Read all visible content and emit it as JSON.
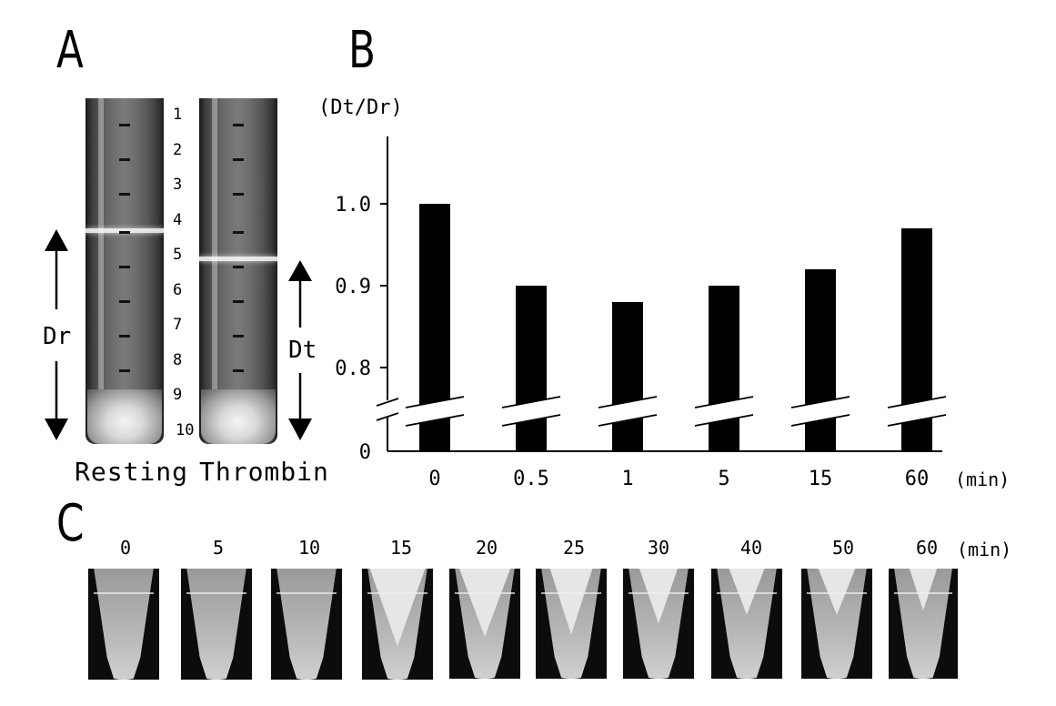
{
  "panels": {
    "A": {
      "letter": "A",
      "tube_numbers": [
        "1",
        "2",
        "3",
        "4",
        "5",
        "6",
        "7",
        "8",
        "9",
        "10"
      ],
      "captions": [
        "Resting",
        "Thrombin"
      ],
      "dr_label": "Dr",
      "dt_label": "Dt"
    },
    "B": {
      "letter": "B",
      "ylabel": "(Dt/Dr)",
      "xunit": "(min)"
    },
    "C": {
      "letter": "C",
      "times": [
        "0",
        "5",
        "10",
        "15",
        "20",
        "25",
        "30",
        "40",
        "50",
        "60"
      ],
      "unit": "(min)"
    }
  },
  "chart_data": {
    "type": "bar",
    "categories": [
      "0",
      "0.5",
      "1",
      "5",
      "15",
      "60"
    ],
    "values": [
      1.0,
      0.9,
      0.88,
      0.9,
      0.92,
      0.97
    ],
    "xlabel": "(min)",
    "ylabel": "(Dt/Dr)",
    "ylim": [
      0,
      1.05
    ],
    "yticks": [
      "0",
      "0.8",
      "0.9",
      "1.0"
    ],
    "axis_break": true,
    "grid": false
  }
}
